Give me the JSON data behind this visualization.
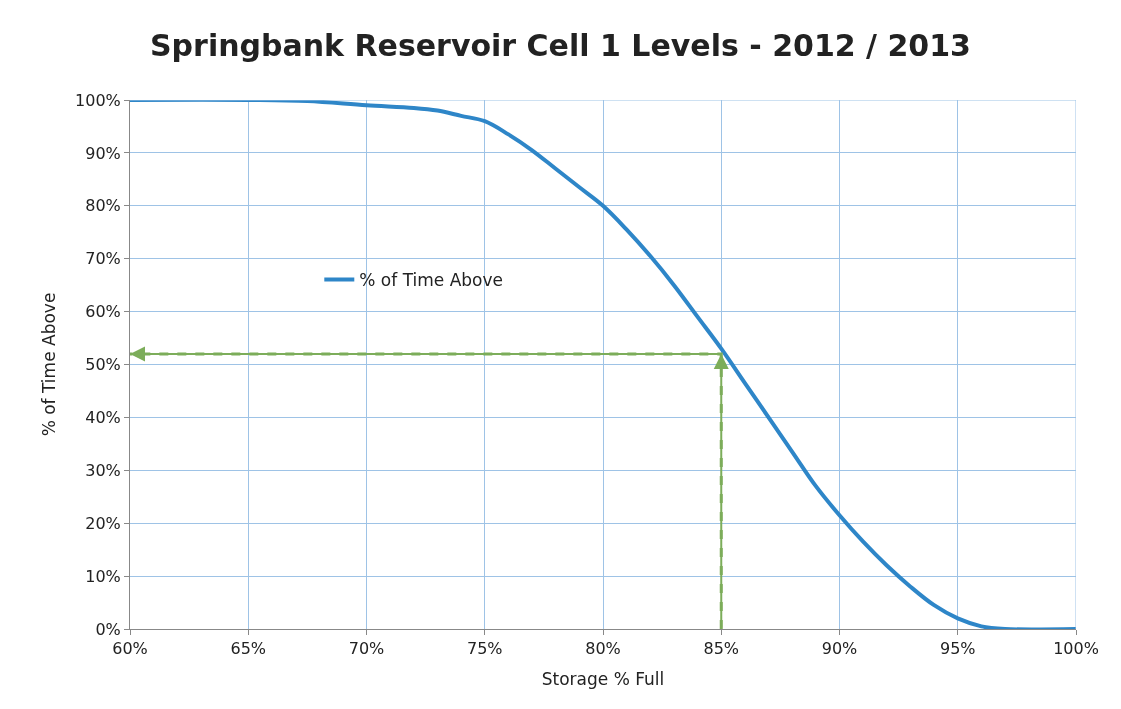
{
  "chart_data": {
    "type": "line",
    "title": "Springbank Reservoir Cell 1 Levels - 2012 / 2013",
    "xlabel": "Storage % Full",
    "ylabel": "% of Time Above",
    "xlim": [
      60,
      100
    ],
    "ylim": [
      0,
      100
    ],
    "xticks": [
      {
        "value": 60,
        "label": "60%"
      },
      {
        "value": 65,
        "label": "65%"
      },
      {
        "value": 70,
        "label": "70%"
      },
      {
        "value": 75,
        "label": "75%"
      },
      {
        "value": 80,
        "label": "80%"
      },
      {
        "value": 85,
        "label": "85%"
      },
      {
        "value": 90,
        "label": "90%"
      },
      {
        "value": 95,
        "label": "95%"
      },
      {
        "value": 100,
        "label": "100%"
      }
    ],
    "yticks": [
      {
        "value": 0,
        "label": "0%"
      },
      {
        "value": 10,
        "label": "10%"
      },
      {
        "value": 20,
        "label": "20%"
      },
      {
        "value": 30,
        "label": "30%"
      },
      {
        "value": 40,
        "label": "40%"
      },
      {
        "value": 50,
        "label": "50%"
      },
      {
        "value": 60,
        "label": "60%"
      },
      {
        "value": 70,
        "label": "70%"
      },
      {
        "value": 80,
        "label": "80%"
      },
      {
        "value": 90,
        "label": "90%"
      },
      {
        "value": 100,
        "label": "100%"
      }
    ],
    "grid": true,
    "legend": "left",
    "marker": "none",
    "series": [
      {
        "name": "% of Time Above",
        "color": "#2e86c8",
        "line_style": "solid",
        "x": [
          60,
          65,
          67.5,
          70,
          72,
          73,
          74,
          75,
          76,
          77,
          78,
          79,
          80,
          81,
          82,
          83,
          84,
          85,
          86,
          87,
          88,
          89,
          90,
          91,
          92,
          93,
          94,
          95,
          96,
          97,
          100
        ],
        "values": [
          100,
          100,
          99.8,
          99,
          98.5,
          98,
          97,
          96,
          93.5,
          90.5,
          87,
          83.5,
          80,
          75.5,
          70.5,
          65,
          59,
          53,
          46.5,
          40,
          33.5,
          27,
          21.5,
          16.5,
          12,
          8,
          4.5,
          2,
          0.5,
          0,
          0
        ]
      },
      {
        "color": "#7cad5a",
        "line_style": "dashed",
        "x": [
          85,
          85,
          60
        ],
        "values": [
          0,
          52,
          52
        ]
      }
    ]
  }
}
